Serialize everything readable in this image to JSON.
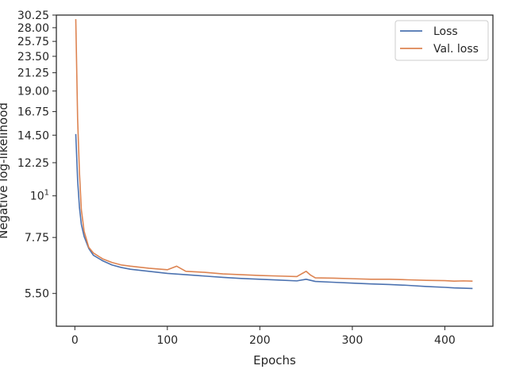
{
  "chart_data": {
    "type": "line",
    "title": "",
    "xlabel": "Epochs",
    "ylabel": "Negative log-likelihood",
    "xlim": [
      -20,
      452
    ],
    "ylim": [
      4.5,
      30.25
    ],
    "yscale": "log",
    "grid": false,
    "legend_position": "top-right",
    "x_ticks": [
      0,
      100,
      200,
      300,
      400
    ],
    "x_tick_labels": [
      "0",
      "100",
      "200",
      "300",
      "400"
    ],
    "y_ticks": [
      5.5,
      7.75,
      10,
      12.25,
      14.5,
      16.75,
      19.0,
      21.25,
      23.5,
      25.75,
      28.0,
      30.25
    ],
    "y_tick_labels": [
      "5.50",
      "7.75",
      "10¹",
      "12.25",
      "14.50",
      "16.75",
      "19.00",
      "21.25",
      "23.50",
      "25.75",
      "28.00",
      "30.25"
    ],
    "series": [
      {
        "name": "Loss",
        "color": "#4c72b0",
        "x": [
          1,
          3,
          5,
          7,
          10,
          15,
          20,
          30,
          40,
          50,
          60,
          80,
          100,
          120,
          140,
          160,
          180,
          200,
          220,
          240,
          250,
          260,
          280,
          300,
          320,
          340,
          360,
          380,
          400,
          410,
          420,
          430
        ],
        "y": [
          14.6,
          11.0,
          9.3,
          8.4,
          7.8,
          7.25,
          6.95,
          6.72,
          6.55,
          6.45,
          6.38,
          6.3,
          6.22,
          6.17,
          6.12,
          6.07,
          6.03,
          6.0,
          5.97,
          5.94,
          6.0,
          5.92,
          5.89,
          5.86,
          5.83,
          5.81,
          5.78,
          5.74,
          5.71,
          5.69,
          5.68,
          5.67
        ]
      },
      {
        "name": "Val. loss",
        "color": "#dd8452",
        "x": [
          1,
          3,
          5,
          7,
          10,
          15,
          20,
          30,
          40,
          50,
          60,
          80,
          100,
          110,
          120,
          140,
          160,
          180,
          200,
          220,
          240,
          250,
          255,
          260,
          280,
          300,
          320,
          340,
          360,
          380,
          400,
          410,
          420,
          430
        ],
        "y": [
          29.5,
          16.0,
          11.5,
          9.2,
          8.05,
          7.3,
          7.05,
          6.8,
          6.65,
          6.55,
          6.5,
          6.42,
          6.36,
          6.5,
          6.3,
          6.26,
          6.2,
          6.17,
          6.14,
          6.12,
          6.1,
          6.3,
          6.15,
          6.05,
          6.04,
          6.02,
          6.0,
          6.0,
          5.98,
          5.96,
          5.95,
          5.93,
          5.94,
          5.93
        ]
      }
    ]
  }
}
